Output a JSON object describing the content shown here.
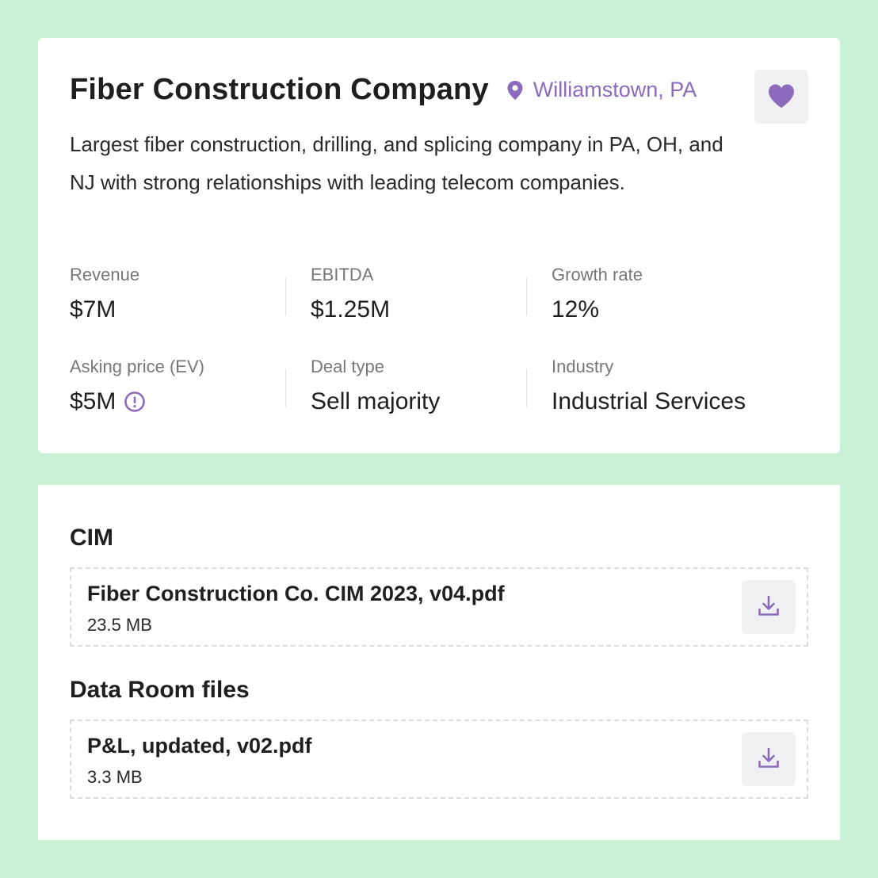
{
  "company": {
    "name": "Fiber Construction Company",
    "location": "Williamstown, PA",
    "description": "Largest fiber construction, drilling, and splicing company in PA, OH, and NJ with strong relationships with leading telecom companies.",
    "favorite_icon": "heart-icon",
    "location_icon": "map-pin-icon"
  },
  "metrics": {
    "revenue": {
      "label": "Revenue",
      "value": "$7M"
    },
    "ebitda": {
      "label": "EBITDA",
      "value": "$1.25M"
    },
    "growth": {
      "label": "Growth rate",
      "value": "12%"
    },
    "asking_price": {
      "label": "Asking price (EV)",
      "value": "$5M",
      "icon": "info-icon"
    },
    "deal_type": {
      "label": "Deal type",
      "value": "Sell majority"
    },
    "industry": {
      "label": "Industry",
      "value": "Industrial Services"
    }
  },
  "files": {
    "cim": {
      "title": "CIM",
      "items": [
        {
          "name": "Fiber Construction Co. CIM 2023, v04.pdf",
          "size": "23.5 MB"
        }
      ]
    },
    "data_room": {
      "title": "Data Room files",
      "items": [
        {
          "name": "P&L, updated, v02.pdf",
          "size": "3.3 MB"
        }
      ]
    },
    "download_icon": "download-icon"
  },
  "colors": {
    "background": "#caf0d6",
    "accent": "#8c6bbd",
    "card": "#ffffff"
  }
}
